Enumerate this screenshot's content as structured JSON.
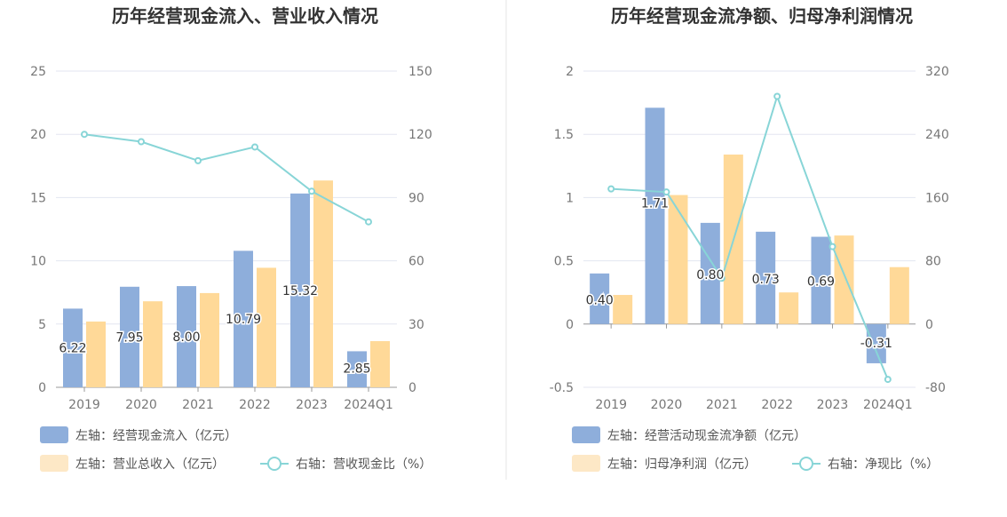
{
  "colors": {
    "bar_left": "#8eaedb",
    "bar_right": "#ffd998",
    "bar_right_legend": "#fde8c6",
    "line": "#88d5d7",
    "grid": "#e3e6f0",
    "divider": "#e6e6e6"
  },
  "chart_data": [
    {
      "type": "bar",
      "title": "历年经营现金流入、营业收入情况",
      "categories": [
        "2019",
        "2020",
        "2021",
        "2022",
        "2023",
        "2024Q1"
      ],
      "left_axis": {
        "min": 0,
        "max": 25,
        "ticks": [
          "0",
          "5",
          "10",
          "15",
          "20",
          "25"
        ]
      },
      "right_axis": {
        "min": 0,
        "max": 150,
        "ticks": [
          "0",
          "30",
          "60",
          "90",
          "120",
          "150"
        ]
      },
      "series": [
        {
          "name": "左轴：经营现金流入（亿元）",
          "kind": "bar",
          "axis": "left",
          "values": [
            6.22,
            7.95,
            8.0,
            10.79,
            15.32,
            2.85
          ],
          "labels": [
            "6.22",
            "7.95",
            "8.00",
            "10.79",
            "15.32",
            "2.85"
          ]
        },
        {
          "name": "左轴：营业总收入（亿元）",
          "kind": "bar",
          "axis": "left",
          "values": [
            5.2,
            6.8,
            7.45,
            9.45,
            16.35,
            3.65
          ]
        },
        {
          "name": "右轴：营收现金比（%）",
          "kind": "line",
          "axis": "right",
          "values": [
            120,
            116.5,
            107.5,
            114,
            93,
            78.5
          ]
        }
      ]
    },
    {
      "type": "bar",
      "title": "历年经营现金流净额、归母净利润情况",
      "categories": [
        "2019",
        "2020",
        "2021",
        "2022",
        "2023",
        "2024Q1"
      ],
      "left_axis": {
        "min": -0.5,
        "max": 2,
        "ticks": [
          "-0.5",
          "0",
          "0.5",
          "1",
          "1.5",
          "2"
        ]
      },
      "right_axis": {
        "min": -80,
        "max": 320,
        "ticks": [
          "-80",
          "0",
          "80",
          "160",
          "240",
          "320"
        ]
      },
      "series": [
        {
          "name": "左轴：经营活动现金流净额（亿元）",
          "kind": "bar",
          "axis": "left",
          "values": [
            0.4,
            1.71,
            0.8,
            0.73,
            0.69,
            -0.31
          ],
          "labels": [
            "0.40",
            "1.71",
            "0.80",
            "0.73",
            "0.69",
            "-0.31"
          ]
        },
        {
          "name": "左轴：归母净利润（亿元）",
          "kind": "bar",
          "axis": "left",
          "values": [
            0.23,
            1.02,
            1.34,
            0.25,
            0.7,
            0.45
          ]
        },
        {
          "name": "右轴：净现比（%）",
          "kind": "line",
          "axis": "right",
          "values": [
            171,
            167,
            58,
            288,
            98,
            -70
          ]
        }
      ]
    }
  ]
}
